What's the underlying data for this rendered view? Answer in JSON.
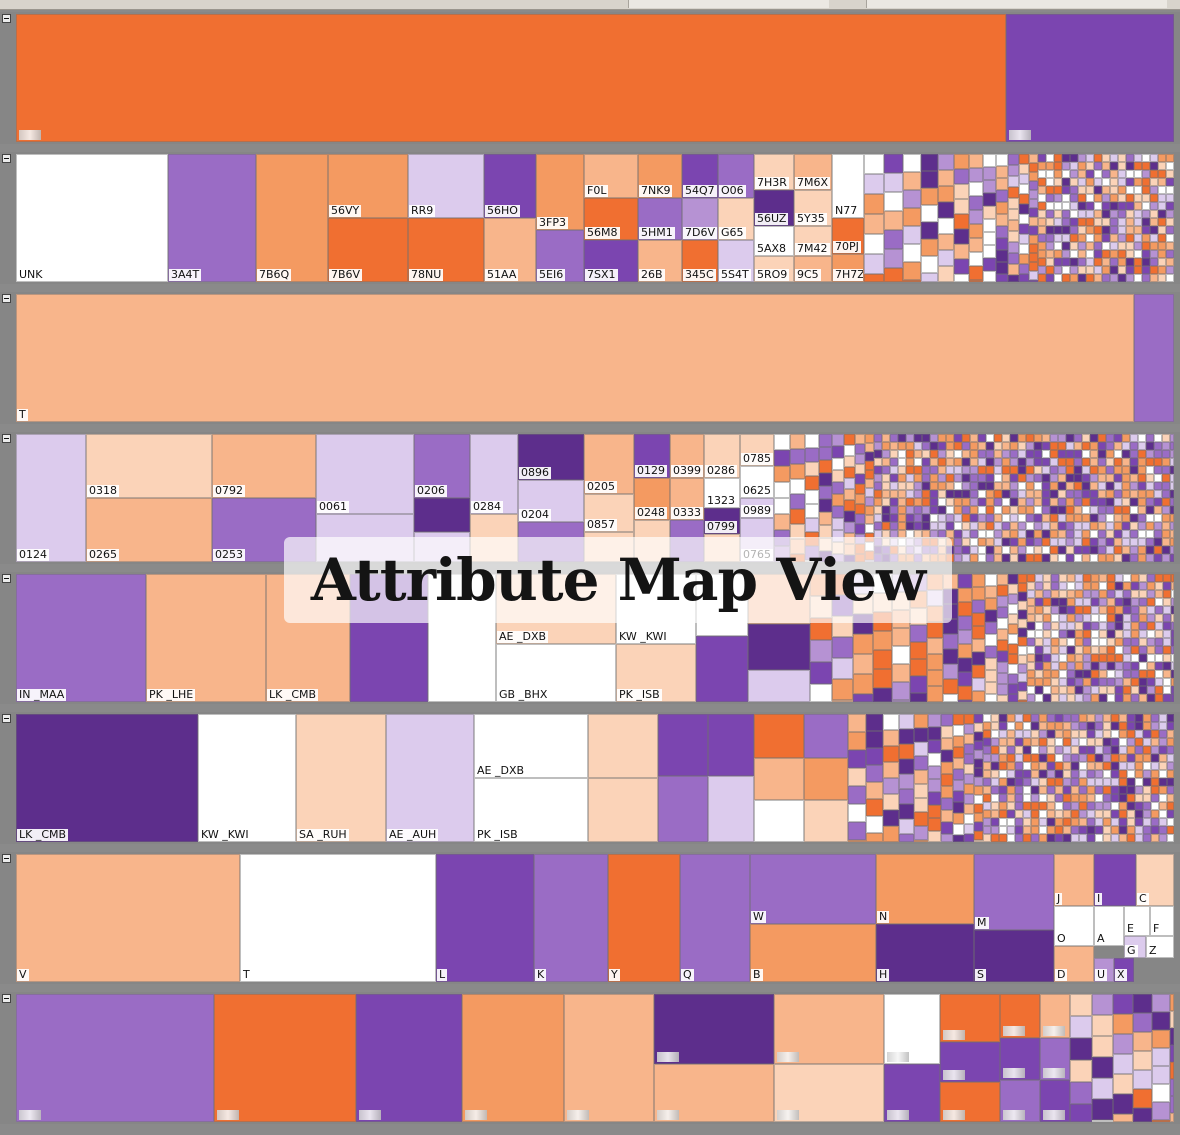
{
  "title": "Attribute Map View",
  "colors": {
    "dark_orange": "#f06f31",
    "medium_orange": "#f49a61",
    "light_orange": "#f8b58b",
    "pale_orange": "#fbd3b8",
    "white": "#ffffff",
    "pale_purple": "#dccbed",
    "light_purple": "#b692d3",
    "medium_purple": "#9a6cc5",
    "purple": "#7b45b0",
    "dark_purple": "#5d2e8c",
    "separator": "#868686"
  },
  "rows": [
    {
      "id": "row-1",
      "collapse_icon": "minus-icon",
      "labels": []
    },
    {
      "id": "row-2",
      "collapse_icon": "minus-icon",
      "labels": [
        "UNK",
        "3A4T",
        "7B6Q",
        "56VY",
        "7B6V",
        "RR9",
        "78NU",
        "56HO",
        "51AA",
        "3FP3",
        "5EI6",
        "F0L",
        "56M8",
        "7SX1",
        "7NK9",
        "5HM1",
        "26B",
        "54Q7",
        "7D6V",
        "345C",
        "O06",
        "G65",
        "5S4T",
        "7H3R",
        "56UZ",
        "5AX8",
        "5RO9",
        "7M6X",
        "5Y35",
        "7M42",
        "9C5",
        "N77",
        "70PJ",
        "7H7Z"
      ]
    },
    {
      "id": "row-3",
      "collapse_icon": "minus-icon",
      "labels": [
        "T"
      ]
    },
    {
      "id": "row-4",
      "collapse_icon": "minus-icon",
      "labels": [
        "0124",
        "0318",
        "0265",
        "0792",
        "0253",
        "0061",
        "0206",
        "0284",
        "0896",
        "0204",
        "0205",
        "0857",
        "0129",
        "0399",
        "0248",
        "0333",
        "0286",
        "1323",
        "0799",
        "0785",
        "0625",
        "0989",
        "0765"
      ]
    },
    {
      "id": "row-5",
      "collapse_icon": "minus-icon",
      "labels": [
        "IN _MAA",
        "PK _LHE",
        "LK _CMB",
        "AE _DXB",
        "GB _BHX",
        "KW _KWI",
        "PK _ISB"
      ]
    },
    {
      "id": "row-6",
      "collapse_icon": "minus-icon",
      "labels": [
        "LK _CMB",
        "KW _KWI",
        "SA _RUH",
        "AE _AUH",
        "AE _DXB",
        "PK _ISB"
      ]
    },
    {
      "id": "row-7",
      "collapse_icon": "minus-icon",
      "labels": [
        "V",
        "T",
        "L",
        "K",
        "Y",
        "Q",
        "W",
        "B",
        "N",
        "H",
        "M",
        "S",
        "J",
        "I",
        "C",
        "O",
        "A",
        "E",
        "F",
        "G",
        "Z",
        "D",
        "U",
        "X"
      ]
    },
    {
      "id": "row-8",
      "collapse_icon": "minus-icon",
      "labels": []
    }
  ]
}
